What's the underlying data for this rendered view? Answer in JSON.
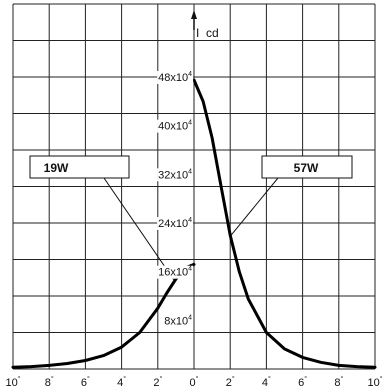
{
  "chart_data": {
    "type": "line",
    "title": "",
    "ylabel": "I",
    "ylabel_unit": "cd",
    "x_unit": "°",
    "x_ticks": [
      10,
      8,
      6,
      4,
      2,
      0,
      2,
      4,
      6,
      8,
      10
    ],
    "xlim": [
      -10,
      10
    ],
    "y_ticks": [
      {
        "value": 8,
        "label": "8x10",
        "exp": "4"
      },
      {
        "value": 16,
        "label": "16x10",
        "exp": "4"
      },
      {
        "value": 24,
        "label": "24x10",
        "exp": "4"
      },
      {
        "value": 32,
        "label": "32x10",
        "exp": "4"
      },
      {
        "value": 40,
        "label": "40x10",
        "exp": "4"
      },
      {
        "value": 48,
        "label": "48x10",
        "exp": "4"
      }
    ],
    "ylim": [
      0,
      60
    ],
    "grid": true,
    "series": [
      {
        "name": "19W",
        "x": [
          -10,
          -9,
          -8,
          -7,
          -6,
          -5,
          -4,
          -3,
          -2,
          -1.5,
          -1,
          -0.5,
          0
        ],
        "y": [
          0.3,
          0.4,
          0.6,
          0.9,
          1.4,
          2.2,
          3.6,
          6.0,
          10.0,
          12.5,
          14.8,
          16.6,
          17.2
        ]
      },
      {
        "name": "57W",
        "x": [
          0,
          0.5,
          1,
          1.5,
          2,
          2.5,
          3,
          4,
          5,
          6,
          7,
          8,
          9,
          10
        ],
        "y": [
          47.5,
          44.0,
          38.0,
          30.0,
          22.0,
          16.0,
          11.5,
          6.0,
          3.3,
          1.9,
          1.1,
          0.6,
          0.4,
          0.3
        ]
      }
    ],
    "annotations": [
      {
        "label": "19W",
        "series": "19W"
      },
      {
        "label": "57W",
        "series": "57W"
      }
    ]
  }
}
